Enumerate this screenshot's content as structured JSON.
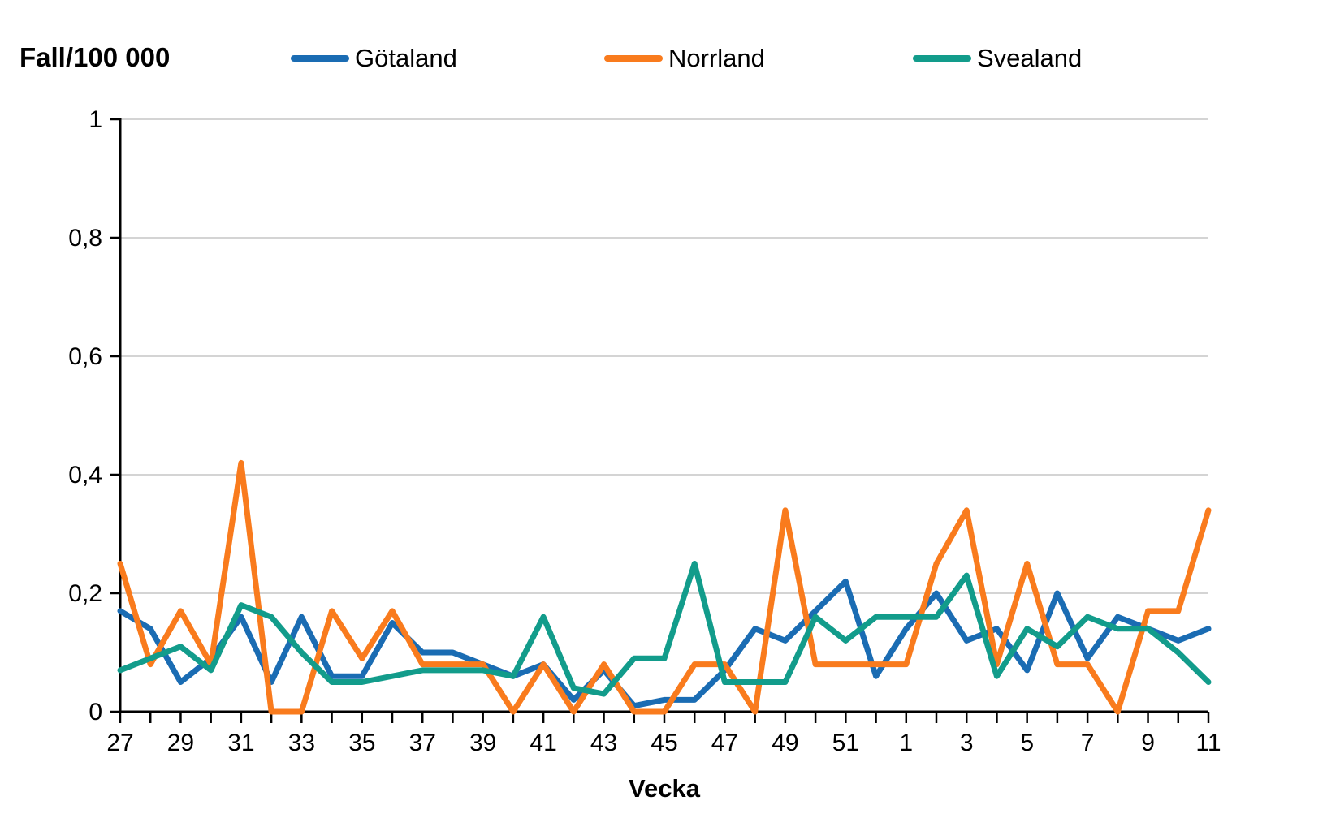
{
  "header": {
    "title": "Fall/100 000"
  },
  "chart_data": {
    "type": "line",
    "title": "Fall/100 000",
    "xlabel": "Vecka",
    "ylabel": "Fall/100 000",
    "ylim": [
      0,
      1
    ],
    "grid": true,
    "legend_position": "top",
    "y_tick_values": [
      0,
      0.2,
      0.4,
      0.6,
      0.8,
      1
    ],
    "y_tick_labels": [
      "0",
      "0,2",
      "0,4",
      "0,6",
      "0,8",
      "1"
    ],
    "categories": [
      "27",
      "28",
      "29",
      "30",
      "31",
      "32",
      "33",
      "34",
      "35",
      "36",
      "37",
      "38",
      "39",
      "40",
      "41",
      "42",
      "43",
      "44",
      "45",
      "46",
      "47",
      "48",
      "49",
      "50",
      "51",
      "52",
      "1",
      "2",
      "3",
      "4",
      "5",
      "6",
      "7",
      "8",
      "9",
      "10",
      "11"
    ],
    "x_labeled_every": 2,
    "series": [
      {
        "name": "Götaland",
        "color": "#1A6CB3",
        "values": [
          0.17,
          0.14,
          0.05,
          0.09,
          0.16,
          0.05,
          0.16,
          0.06,
          0.06,
          0.15,
          0.1,
          0.1,
          0.08,
          0.06,
          0.08,
          0.02,
          0.07,
          0.01,
          0.02,
          0.02,
          0.07,
          0.14,
          0.12,
          0.17,
          0.22,
          0.06,
          0.14,
          0.2,
          0.12,
          0.14,
          0.07,
          0.2,
          0.09,
          0.16,
          0.14,
          0.12,
          0.14
        ]
      },
      {
        "name": "Norrland",
        "color": "#F97B1D",
        "values": [
          0.25,
          0.08,
          0.17,
          0.08,
          0.42,
          0,
          0,
          0.17,
          0.09,
          0.17,
          0.08,
          0.08,
          0.08,
          0,
          0.08,
          0,
          0.08,
          0,
          0,
          0.08,
          0.08,
          0,
          0.34,
          0.08,
          0.08,
          0.08,
          0.08,
          0.25,
          0.34,
          0.08,
          0.25,
          0.08,
          0.08,
          0,
          0.17,
          0.17,
          0.34
        ]
      },
      {
        "name": "Svealand",
        "color": "#129C8B",
        "values": [
          0.07,
          0.09,
          0.11,
          0.07,
          0.18,
          0.16,
          0.1,
          0.05,
          0.05,
          0.06,
          0.07,
          0.07,
          0.07,
          0.06,
          0.16,
          0.04,
          0.03,
          0.09,
          0.09,
          0.25,
          0.05,
          0.05,
          0.05,
          0.16,
          0.12,
          0.16,
          0.16,
          0.16,
          0.23,
          0.06,
          0.14,
          0.11,
          0.16,
          0.14,
          0.14,
          0.1,
          0.05
        ]
      }
    ],
    "colors": {
      "grid": "#C6C6C6",
      "axis": "#000000",
      "text": "#000000"
    }
  }
}
